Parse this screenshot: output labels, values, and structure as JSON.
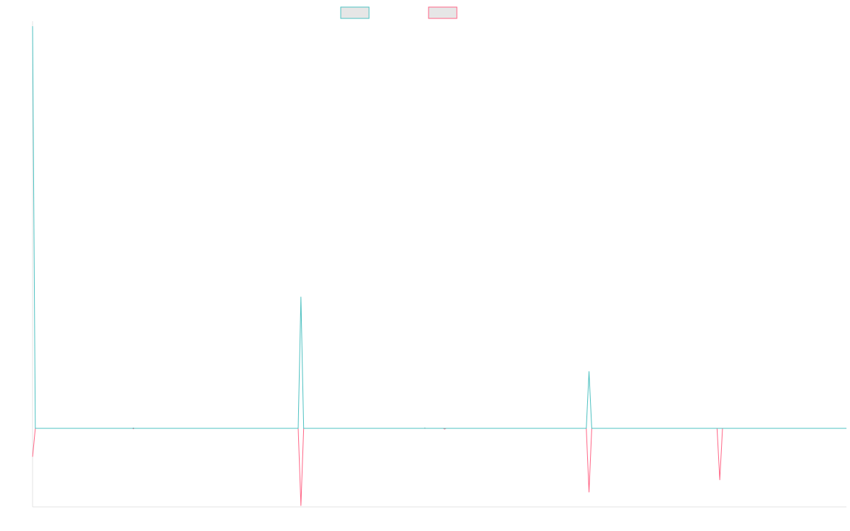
{
  "chart_data": {
    "type": "line",
    "title": "",
    "xlabel": "",
    "ylabel": "",
    "x_count": 1195,
    "xlim": [
      0,
      1195
    ],
    "ylim": [
      -58,
      297
    ],
    "grid": false,
    "legend_position": "top-center",
    "series": [
      {
        "color": "#4bc0c0",
        "legend_fill": "#e6e6e6",
        "points": [
          [
            0,
            297
          ],
          [
            4,
            0
          ],
          [
            147,
            0
          ],
          [
            148,
            0.3
          ],
          [
            149,
            0
          ],
          [
            390,
            0
          ],
          [
            394,
            97
          ],
          [
            398,
            0
          ],
          [
            575,
            0
          ],
          [
            576,
            0.3
          ],
          [
            577,
            0
          ],
          [
            813,
            0
          ],
          [
            817,
            42
          ],
          [
            821,
            0
          ],
          [
            1195,
            0
          ]
        ]
      },
      {
        "color": "#ff6384",
        "legend_fill": "#e6e6e6",
        "points": [
          [
            0,
            -21
          ],
          [
            4,
            0
          ],
          [
            147,
            0
          ],
          [
            148,
            -0.3
          ],
          [
            149,
            0
          ],
          [
            390,
            0
          ],
          [
            394,
            -57
          ],
          [
            398,
            0
          ],
          [
            603,
            0
          ],
          [
            605,
            -0.5
          ],
          [
            607,
            0
          ],
          [
            813,
            0
          ],
          [
            817,
            -47
          ],
          [
            821,
            0
          ],
          [
            1005,
            0
          ],
          [
            1009,
            -38
          ],
          [
            1013,
            0
          ],
          [
            1195,
            0
          ]
        ]
      }
    ]
  }
}
